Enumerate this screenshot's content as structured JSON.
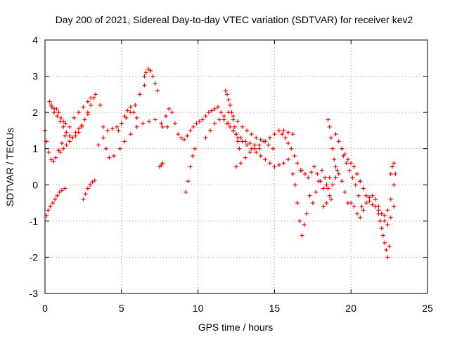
{
  "chart_data": {
    "type": "scatter",
    "title": "Day 200 of 2021, Sidereal Day-to-day VTEC variation (SDTVAR) for receiver kev2",
    "xlabel": "GPS time / hours",
    "ylabel": "SDTVAR / TECUs",
    "xlim": [
      0,
      25
    ],
    "ylim": [
      -3,
      4
    ],
    "xticks": [
      0,
      5,
      10,
      15,
      20,
      25
    ],
    "yticks": [
      -3,
      -2,
      -1,
      0,
      1,
      2,
      3,
      4
    ],
    "xtick_labels": [
      "0",
      "5",
      "10",
      "15",
      "20",
      "25"
    ],
    "ytick_labels": [
      "-3",
      "-2",
      "-1",
      "0",
      "1",
      "2",
      "3",
      "4"
    ],
    "grid": true,
    "marker": "+",
    "series": [
      {
        "name": "SDTVAR",
        "color": "#ff0000",
        "tracks": [
          {
            "x": [
              0.0,
              0.1,
              0.25,
              0.4,
              0.55,
              0.7,
              0.9,
              1.1,
              1.3,
              1.6,
              1.9,
              2.2,
              2.5,
              2.8,
              3.0,
              3.3,
              3.6,
              3.8,
              4.0,
              4.2,
              4.5,
              4.9,
              5.2,
              5.6,
              6.0,
              6.4,
              6.8,
              7.2,
              7.6,
              8.0
            ],
            "y": [
              1.5,
              1.2,
              0.9,
              0.7,
              0.65,
              0.75,
              0.95,
              1.15,
              1.35,
              1.6,
              1.85,
              2.0,
              2.15,
              2.3,
              2.4,
              2.5,
              2.2,
              1.6,
              1.0,
              0.75,
              0.8,
              1.0,
              1.2,
              1.4,
              1.6,
              1.7,
              1.75,
              1.8,
              1.7,
              1.6
            ]
          },
          {
            "x": [
              0.3,
              0.45,
              0.6,
              0.75,
              0.9,
              1.05,
              1.2,
              1.35
            ],
            "y": [
              2.3,
              2.15,
              2.0,
              2.1,
              2.0,
              1.85,
              1.75,
              1.7
            ]
          },
          {
            "x": [
              0.1,
              0.2,
              0.35,
              0.5,
              0.65,
              0.8,
              0.95,
              1.1,
              1.3
            ],
            "y": [
              -0.85,
              -0.7,
              -0.6,
              -0.5,
              -0.4,
              -0.3,
              -0.2,
              -0.15,
              -0.1
            ]
          },
          {
            "x": [
              2.5,
              2.65,
              2.8,
              2.95,
              3.1,
              3.25
            ],
            "y": [
              -0.4,
              -0.25,
              -0.1,
              0.0,
              0.08,
              0.12
            ]
          },
          {
            "x": [
              0.4,
              0.6,
              0.8,
              1.0,
              1.2,
              1.4,
              1.6,
              1.8,
              2.0,
              2.2,
              2.4,
              2.6,
              2.8,
              3.0,
              3.2
            ],
            "y": [
              2.2,
              2.1,
              1.9,
              1.75,
              1.6,
              1.45,
              1.35,
              1.3,
              1.35,
              1.45,
              1.6,
              1.8,
              2.0,
              2.2,
              2.4
            ]
          },
          {
            "x": [
              1.0,
              1.2,
              1.4,
              1.6,
              1.8,
              2.0,
              2.2,
              2.4,
              2.6,
              2.8
            ],
            "y": [
              0.9,
              1.0,
              1.1,
              1.2,
              1.3,
              1.45,
              1.55,
              1.65,
              1.8,
              1.95
            ]
          },
          {
            "x": [
              3.5,
              3.8,
              4.1,
              4.4,
              4.7,
              5.0,
              5.3,
              5.6,
              5.9,
              6.2,
              6.5
            ],
            "y": [
              1.1,
              1.3,
              1.5,
              1.55,
              1.6,
              1.7,
              1.85,
              2.0,
              2.2,
              2.5,
              2.75
            ]
          },
          {
            "x": [
              4.8,
              5.0,
              5.2,
              5.4,
              5.6,
              5.8,
              6.0
            ],
            "y": [
              1.5,
              1.7,
              1.9,
              2.05,
              2.15,
              2.0,
              1.85
            ]
          },
          {
            "x": [
              6.5,
              6.6,
              6.75,
              6.9,
              7.05,
              7.2,
              7.35
            ],
            "y": [
              3.0,
              3.1,
              3.2,
              3.15,
              3.0,
              2.8,
              2.6
            ]
          },
          {
            "x": [
              7.5,
              7.6,
              7.7
            ],
            "y": [
              0.5,
              0.55,
              0.6
            ]
          },
          {
            "x": [
              7.7,
              7.9,
              8.1,
              8.3,
              8.5,
              8.7,
              8.9,
              9.1,
              9.3,
              9.5,
              9.7,
              9.9,
              10.1,
              10.3,
              10.5,
              10.7,
              10.9,
              11.1,
              11.3,
              11.5,
              11.7,
              11.9,
              12.1,
              12.3,
              12.5,
              12.8,
              13.1,
              13.4,
              13.7,
              14.0
            ],
            "y": [
              1.6,
              1.9,
              2.1,
              2.0,
              1.7,
              1.4,
              1.3,
              1.25,
              1.35,
              1.5,
              1.6,
              1.7,
              1.75,
              1.8,
              1.9,
              2.0,
              2.05,
              2.1,
              2.15,
              2.0,
              1.8,
              1.7,
              1.6,
              1.5,
              1.4,
              1.3,
              1.2,
              1.15,
              1.1,
              1.0
            ]
          },
          {
            "x": [
              9.2,
              9.35,
              9.5,
              9.65,
              9.8
            ],
            "y": [
              -0.2,
              0.1,
              0.5,
              0.8,
              1.0
            ]
          },
          {
            "x": [
              10.5,
              10.8,
              11.1,
              11.4,
              11.7,
              12.0,
              12.3,
              12.6,
              12.9,
              13.2,
              13.5,
              13.8,
              14.1,
              14.4,
              14.7,
              15.0,
              15.3,
              15.6,
              15.9
            ],
            "y": [
              1.3,
              1.5,
              1.7,
              1.8,
              1.9,
              1.7,
              1.5,
              1.3,
              1.2,
              1.1,
              1.0,
              0.9,
              0.8,
              0.7,
              0.6,
              0.5,
              0.55,
              0.6,
              0.7
            ]
          },
          {
            "x": [
              11.8,
              11.9,
              12.0,
              12.1,
              12.2,
              12.3,
              12.4,
              12.5,
              12.6,
              12.7
            ],
            "y": [
              2.6,
              2.5,
              2.35,
              2.2,
              2.0,
              1.8,
              1.6,
              1.4,
              1.2,
              1.0
            ]
          },
          {
            "x": [
              12.0,
              12.3,
              12.6,
              12.9,
              13.2,
              13.5,
              13.8,
              14.1,
              14.4,
              14.7,
              15.0,
              15.3,
              15.6,
              15.9,
              16.2
            ],
            "y": [
              2.0,
              1.9,
              1.75,
              1.6,
              1.5,
              1.4,
              1.3,
              1.25,
              1.2,
              1.3,
              1.4,
              1.5,
              1.5,
              1.45,
              1.4
            ]
          },
          {
            "x": [
              12.5,
              12.8,
              13.1,
              13.4,
              13.7,
              14.0,
              14.3,
              14.6,
              14.9
            ],
            "y": [
              0.5,
              0.6,
              0.75,
              0.9,
              1.0,
              1.1,
              1.2,
              1.1,
              1.0
            ]
          },
          {
            "x": [
              15.5,
              15.7,
              15.9,
              16.1,
              16.3,
              16.5,
              16.7
            ],
            "y": [
              1.4,
              1.3,
              1.15,
              1.0,
              0.8,
              0.6,
              0.4
            ]
          },
          {
            "x": [
              16.2,
              16.35,
              16.5,
              16.65,
              16.8,
              16.95,
              17.1
            ],
            "y": [
              0.3,
              0.0,
              -0.5,
              -1.0,
              -1.4,
              -1.1,
              -0.8
            ]
          },
          {
            "x": [
              16.8,
              17.0,
              17.2,
              17.4,
              17.6,
              17.8,
              18.0,
              18.2,
              18.4,
              18.6
            ],
            "y": [
              0.4,
              0.3,
              0.2,
              0.35,
              0.5,
              0.3,
              0.1,
              -0.1,
              0.0,
              0.2
            ]
          },
          {
            "x": [
              17.3,
              17.5,
              17.7,
              17.9,
              18.1,
              18.3,
              18.5,
              18.7
            ],
            "y": [
              -0.3,
              -0.5,
              -0.2,
              0.1,
              0.4,
              0.2,
              -0.1,
              -0.4
            ]
          },
          {
            "x": [
              18.5,
              18.6,
              18.7,
              18.8,
              18.9,
              19.0,
              19.1
            ],
            "y": [
              1.8,
              1.6,
              1.3,
              1.0,
              0.7,
              0.5,
              0.4
            ]
          },
          {
            "x": [
              18.2,
              18.4,
              18.6,
              18.8,
              19.0,
              19.2,
              19.4,
              19.6,
              19.8
            ],
            "y": [
              -0.6,
              -0.5,
              -0.3,
              0.0,
              0.2,
              0.3,
              0.1,
              -0.2,
              -0.5
            ]
          },
          {
            "x": [
              19.0,
              19.2,
              19.4,
              19.6,
              19.8,
              20.0,
              20.2,
              20.4,
              20.6
            ],
            "y": [
              1.4,
              1.2,
              1.0,
              0.85,
              0.7,
              0.6,
              0.5,
              0.3,
              0.1
            ]
          },
          {
            "x": [
              19.5,
              19.7,
              19.9,
              20.1,
              20.3,
              20.5,
              20.7
            ],
            "y": [
              0.8,
              0.6,
              0.4,
              0.2,
              0.0,
              -0.3,
              -0.6
            ]
          },
          {
            "x": [
              20.0,
              20.2,
              20.4,
              20.6,
              20.8,
              21.0,
              21.2,
              21.4,
              21.6,
              21.8,
              22.0,
              22.2,
              22.4,
              22.6,
              22.8
            ],
            "y": [
              -0.5,
              -0.6,
              -0.8,
              -0.9,
              -0.7,
              -0.5,
              -0.35,
              -0.3,
              -0.4,
              -0.6,
              -0.8,
              -1.0,
              -1.1,
              -0.9,
              -0.6
            ]
          },
          {
            "x": [
              20.6,
              20.8,
              21.0,
              21.2,
              21.4,
              21.6,
              21.8,
              22.0,
              22.2,
              22.4,
              22.6,
              22.8
            ],
            "y": [
              0.1,
              -0.1,
              -0.3,
              -0.45,
              -0.55,
              -0.6,
              -0.7,
              -0.8,
              -0.85,
              -0.7,
              -0.4,
              0.0
            ]
          },
          {
            "x": [
              21.8,
              21.9,
              22.0,
              22.1,
              22.2,
              22.3,
              22.4,
              22.5
            ],
            "y": [
              -0.8,
              -1.0,
              -1.2,
              -1.4,
              -1.6,
              -1.8,
              -2.0,
              -1.7
            ]
          },
          {
            "x": [
              22.6,
              22.7,
              22.8,
              22.9
            ],
            "y": [
              0.3,
              0.5,
              0.6,
              0.3
            ]
          }
        ]
      }
    ]
  }
}
